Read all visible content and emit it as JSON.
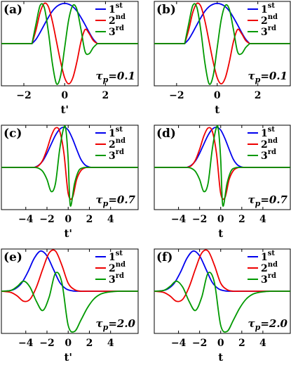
{
  "colors": {
    "first": "#0000ee",
    "second": "#ee0000",
    "third": "#009900"
  },
  "chart_data": [
    {
      "type": "line",
      "panel": "(a)",
      "xlabel": "t'",
      "tau_label": "τp=0.1",
      "tau_symbol": "τ",
      "tau_sub": "p",
      "tau_value": "=0.1",
      "xlim": [
        -3.1,
        3.6
      ],
      "ylim": [
        -1.05,
        1.05
      ],
      "xticks": [
        -2,
        0,
        2
      ],
      "tick_labels": [
        "−2",
        "0",
        "2"
      ],
      "legend": [
        {
          "base": "1",
          "sup": "st"
        },
        {
          "base": "2",
          "sup": "nd"
        },
        {
          "base": "3",
          "sup": "rd"
        }
      ],
      "series": [
        {
          "name": "1st",
          "x": [
            -1.6,
            -1.4,
            -1.2,
            -1.0,
            -0.8,
            -0.6,
            -0.4,
            -0.2,
            0,
            0.2,
            0.4,
            0.6,
            0.8,
            1.0,
            1.2,
            1.4,
            1.6
          ],
          "y": [
            0,
            0.11,
            0.28,
            0.47,
            0.65,
            0.81,
            0.92,
            0.98,
            1.0,
            0.98,
            0.92,
            0.81,
            0.65,
            0.47,
            0.28,
            0.11,
            0
          ]
        },
        {
          "name": "2nd",
          "x": [
            -1.6,
            -1.4,
            -1.2,
            -1.0,
            -0.8,
            -0.6,
            -0.4,
            -0.2,
            0,
            0.2,
            0.4,
            0.6,
            0.8,
            1.0,
            1.2,
            1.4,
            1.6
          ],
          "y": [
            0,
            0.35,
            0.78,
            1.0,
            0.92,
            0.55,
            0.05,
            -0.45,
            -0.85,
            -1.0,
            -0.85,
            -0.45,
            0.05,
            0.35,
            0.25,
            0.08,
            0
          ]
        },
        {
          "name": "3rd",
          "x": [
            -1.6,
            -1.4,
            -1.2,
            -1.0,
            -0.8,
            -0.6,
            -0.4,
            -0.2,
            0,
            0.2,
            0.4,
            0.6,
            0.8,
            1.0,
            1.2,
            1.4,
            1.6
          ],
          "y": [
            0,
            0.5,
            0.95,
            0.9,
            0.3,
            -0.5,
            -1.0,
            -0.8,
            -0.1,
            0.6,
            0.95,
            0.85,
            0.35,
            -0.2,
            -0.25,
            -0.1,
            0
          ]
        }
      ]
    },
    {
      "type": "line",
      "panel": "(b)",
      "xlabel": "t",
      "tau_label": "τp=0.1",
      "tau_symbol": "τ",
      "tau_sub": "p",
      "tau_value": "=0.1",
      "xlim": [
        -3.1,
        3.6
      ],
      "ylim": [
        -1.05,
        1.05
      ],
      "xticks": [
        -2,
        0,
        2
      ],
      "tick_labels": [
        "−2",
        "0",
        "2"
      ],
      "legend": [
        {
          "base": "1",
          "sup": "st"
        },
        {
          "base": "2",
          "sup": "nd"
        },
        {
          "base": "3",
          "sup": "rd"
        }
      ],
      "series": [
        {
          "name": "1st",
          "x": [
            -1.6,
            -1.4,
            -1.2,
            -1.0,
            -0.8,
            -0.6,
            -0.4,
            -0.2,
            0,
            0.2,
            0.4,
            0.6,
            0.8,
            1.0,
            1.2,
            1.4,
            1.6
          ],
          "y": [
            0,
            0.11,
            0.28,
            0.47,
            0.65,
            0.81,
            0.92,
            0.98,
            1.0,
            0.98,
            0.92,
            0.81,
            0.65,
            0.47,
            0.28,
            0.11,
            0
          ]
        },
        {
          "name": "2nd",
          "x": [
            -1.6,
            -1.4,
            -1.2,
            -1.0,
            -0.8,
            -0.6,
            -0.4,
            -0.2,
            0,
            0.2,
            0.4,
            0.6,
            0.8,
            1.0,
            1.2,
            1.4,
            1.6
          ],
          "y": [
            0,
            0.35,
            0.78,
            1.0,
            0.92,
            0.55,
            0.05,
            -0.45,
            -0.85,
            -1.0,
            -0.85,
            -0.45,
            0.05,
            0.35,
            0.25,
            0.08,
            0
          ]
        },
        {
          "name": "3rd",
          "x": [
            -1.6,
            -1.4,
            -1.2,
            -1.0,
            -0.8,
            -0.6,
            -0.4,
            -0.2,
            0,
            0.2,
            0.4,
            0.6,
            0.8,
            1.0,
            1.2,
            1.4,
            1.6
          ],
          "y": [
            0,
            0.5,
            0.95,
            0.9,
            0.3,
            -0.5,
            -1.0,
            -0.8,
            -0.1,
            0.6,
            0.95,
            0.85,
            0.35,
            -0.2,
            -0.25,
            -0.1,
            0
          ]
        }
      ]
    },
    {
      "type": "line",
      "panel": "(c)",
      "xlabel": "t'",
      "tau_label": "τp=0.7",
      "tau_symbol": "τ",
      "tau_sub": "p",
      "tau_value": "=0.7",
      "xlim": [
        -6.3,
        6.6
      ],
      "ylim": [
        -1.05,
        1.05
      ],
      "xticks": [
        -4,
        -2,
        0,
        2,
        4
      ],
      "tick_labels": [
        "−4",
        "−2",
        "0",
        "2",
        "4"
      ],
      "legend": [
        {
          "base": "1",
          "sup": "st"
        },
        {
          "base": "2",
          "sup": "nd"
        },
        {
          "base": "3",
          "sup": "rd"
        }
      ],
      "series": [
        {
          "name": "1st",
          "x": [
            -3.2,
            -2.8,
            -2.4,
            -2.0,
            -1.6,
            -1.2,
            -0.8,
            -0.4,
            0,
            0.4,
            0.8,
            1.2,
            1.6,
            2.0,
            2.4
          ],
          "y": [
            0,
            0.05,
            0.16,
            0.35,
            0.58,
            0.8,
            0.95,
            1.0,
            0.93,
            0.72,
            0.45,
            0.2,
            0.06,
            0.01,
            0
          ]
        },
        {
          "name": "2nd",
          "x": [
            -3.2,
            -2.8,
            -2.4,
            -2.0,
            -1.6,
            -1.2,
            -0.8,
            -0.4,
            0,
            0.4,
            0.8,
            1.2,
            1.6,
            2.0
          ],
          "y": [
            0,
            0.04,
            0.18,
            0.45,
            0.78,
            0.98,
            0.9,
            0.35,
            -0.65,
            -0.75,
            -0.3,
            -0.08,
            -0.01,
            0
          ]
        },
        {
          "name": "3rd",
          "x": [
            -3.2,
            -2.8,
            -2.4,
            -2.0,
            -1.6,
            -1.2,
            -0.8,
            -0.4,
            -0.2,
            0,
            0.2,
            0.6,
            1.0,
            1.4,
            1.8
          ],
          "y": [
            0,
            -0.02,
            -0.1,
            -0.3,
            -0.6,
            -0.4,
            0.45,
            1.0,
            0.9,
            0.2,
            -0.95,
            -0.4,
            -0.08,
            -0.01,
            0
          ]
        }
      ]
    },
    {
      "type": "line",
      "panel": "(d)",
      "xlabel": "t",
      "tau_label": "τp=0.7",
      "tau_symbol": "τ",
      "tau_sub": "p",
      "tau_value": "=0.7",
      "xlim": [
        -6.3,
        6.6
      ],
      "ylim": [
        -1.05,
        1.05
      ],
      "xticks": [
        -4,
        -2,
        0,
        2,
        4
      ],
      "tick_labels": [
        "−4",
        "−2",
        "0",
        "2",
        "4"
      ],
      "legend": [
        {
          "base": "1",
          "sup": "st"
        },
        {
          "base": "2",
          "sup": "nd"
        },
        {
          "base": "3",
          "sup": "rd"
        }
      ],
      "series": [
        {
          "name": "1st",
          "x": [
            -3.2,
            -2.8,
            -2.4,
            -2.0,
            -1.6,
            -1.2,
            -0.8,
            -0.4,
            0,
            0.4,
            0.8,
            1.2,
            1.6,
            2.0,
            2.4
          ],
          "y": [
            0,
            0.05,
            0.16,
            0.35,
            0.58,
            0.8,
            0.95,
            1.0,
            0.93,
            0.72,
            0.45,
            0.2,
            0.06,
            0.01,
            0
          ]
        },
        {
          "name": "2nd",
          "x": [
            -3.2,
            -2.8,
            -2.4,
            -2.0,
            -1.6,
            -1.2,
            -0.8,
            -0.4,
            0,
            0.4,
            0.8,
            1.2,
            1.6,
            2.0
          ],
          "y": [
            0,
            0.04,
            0.18,
            0.45,
            0.78,
            0.98,
            0.9,
            0.35,
            -0.65,
            -0.75,
            -0.3,
            -0.08,
            -0.01,
            0
          ]
        },
        {
          "name": "3rd",
          "x": [
            -3.2,
            -2.8,
            -2.4,
            -2.0,
            -1.6,
            -1.2,
            -0.8,
            -0.4,
            -0.2,
            0,
            0.2,
            0.6,
            1.0,
            1.4,
            1.8
          ],
          "y": [
            0,
            -0.02,
            -0.1,
            -0.3,
            -0.6,
            -0.4,
            0.45,
            1.0,
            0.9,
            0.2,
            -0.95,
            -0.4,
            -0.08,
            -0.01,
            0
          ]
        }
      ]
    },
    {
      "type": "line",
      "panel": "(e)",
      "xlabel": "t'",
      "tau_label": "τp=2.0",
      "tau_symbol": "τ",
      "tau_sub": "p",
      "tau_value": "=2.0",
      "xlim": [
        -6.3,
        6.6
      ],
      "ylim": [
        -1.05,
        1.05
      ],
      "xticks": [
        -4,
        -2,
        0,
        2,
        4
      ],
      "tick_labels": [
        "−4",
        "−2",
        "0",
        "2",
        "4"
      ],
      "legend": [
        {
          "base": "1",
          "sup": "st"
        },
        {
          "base": "2",
          "sup": "nd"
        },
        {
          "base": "3",
          "sup": "rd"
        }
      ],
      "series": [
        {
          "name": "1st",
          "x": [
            -6.3,
            -5.6,
            -5.0,
            -4.4,
            -3.8,
            -3.2,
            -2.6,
            -2.0,
            -1.4,
            -0.8,
            -0.2,
            0.4,
            1.0,
            1.6
          ],
          "y": [
            0,
            0.01,
            0.06,
            0.2,
            0.48,
            0.82,
            1.0,
            0.88,
            0.55,
            0.22,
            0.06,
            0.01,
            0,
            0
          ]
        },
        {
          "name": "2nd",
          "x": [
            -6.3,
            -5.4,
            -4.8,
            -4.2,
            -3.6,
            -3.0,
            -2.4,
            -1.8,
            -1.2,
            -0.6,
            0,
            0.6,
            1.2,
            1.8,
            2.4
          ],
          "y": [
            0,
            -0.03,
            -0.12,
            -0.25,
            -0.2,
            0.1,
            0.55,
            0.95,
            1.0,
            0.65,
            0.2,
            0.04,
            0,
            0,
            0
          ]
        },
        {
          "name": "3rd",
          "x": [
            -6.3,
            -5.4,
            -4.8,
            -4.2,
            -3.6,
            -3.0,
            -2.4,
            -1.8,
            -1.2,
            -0.6,
            0,
            0.6,
            1.2,
            1.8,
            2.4,
            3.0,
            3.6,
            4.2,
            4.8
          ],
          "y": [
            0,
            0.02,
            0.12,
            0.25,
            0.1,
            -0.25,
            -0.48,
            -0.15,
            0.45,
            0.22,
            -0.85,
            -1.0,
            -0.72,
            -0.42,
            -0.2,
            -0.08,
            -0.03,
            -0.01,
            0
          ]
        }
      ]
    },
    {
      "type": "line",
      "panel": "(f)",
      "xlabel": "t",
      "tau_label": "τp=2.0",
      "tau_symbol": "τ",
      "tau_sub": "p",
      "tau_value": "=2.0",
      "xlim": [
        -6.3,
        6.6
      ],
      "ylim": [
        -1.05,
        1.05
      ],
      "xticks": [
        -4,
        -2,
        0,
        2,
        4
      ],
      "tick_labels": [
        "−4",
        "−2",
        "0",
        "2",
        "4"
      ],
      "legend": [
        {
          "base": "1",
          "sup": "st"
        },
        {
          "base": "2",
          "sup": "nd"
        },
        {
          "base": "3",
          "sup": "rd"
        }
      ],
      "series": [
        {
          "name": "1st",
          "x": [
            -6.3,
            -5.6,
            -5.0,
            -4.4,
            -3.8,
            -3.2,
            -2.6,
            -2.0,
            -1.4,
            -0.8,
            -0.2,
            0.4,
            1.0,
            1.6
          ],
          "y": [
            0,
            0.01,
            0.06,
            0.2,
            0.48,
            0.82,
            1.0,
            0.88,
            0.55,
            0.22,
            0.06,
            0.01,
            0,
            0
          ]
        },
        {
          "name": "2nd",
          "x": [
            -6.3,
            -5.4,
            -4.8,
            -4.2,
            -3.6,
            -3.0,
            -2.4,
            -1.8,
            -1.2,
            -0.6,
            0,
            0.6,
            1.2,
            1.8,
            2.4
          ],
          "y": [
            0,
            -0.03,
            -0.12,
            -0.25,
            -0.2,
            0.1,
            0.55,
            0.95,
            1.0,
            0.65,
            0.2,
            0.04,
            0,
            0,
            0
          ]
        },
        {
          "name": "3rd",
          "x": [
            -6.3,
            -5.4,
            -4.8,
            -4.2,
            -3.6,
            -3.0,
            -2.4,
            -1.8,
            -1.2,
            -0.6,
            0,
            0.6,
            1.2,
            1.8,
            2.4,
            3.0,
            3.6,
            4.2,
            4.8
          ],
          "y": [
            0,
            0.02,
            0.12,
            0.25,
            0.1,
            -0.25,
            -0.48,
            -0.15,
            0.45,
            0.22,
            -0.85,
            -1.0,
            -0.72,
            -0.42,
            -0.2,
            -0.08,
            -0.03,
            -0.01,
            0
          ]
        }
      ]
    }
  ]
}
